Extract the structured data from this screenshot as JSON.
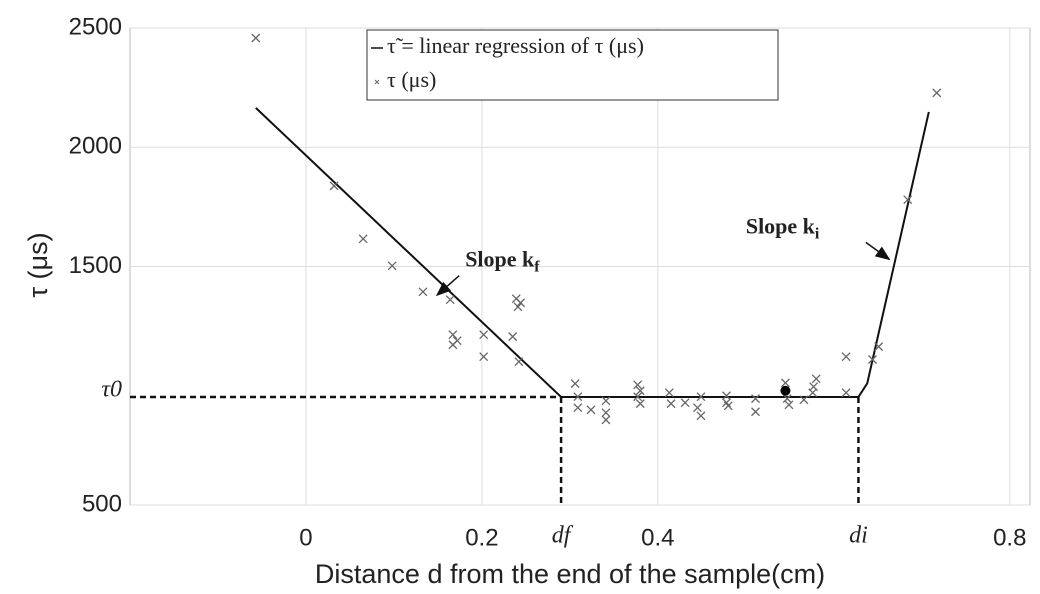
{
  "chart_data": {
    "type": "scatter",
    "xlabel": "Distance d from the end of the sample(cm)",
    "ylabel": "τ (μs)",
    "xlim": [
      -0.2,
      0.823
    ],
    "ylim": [
      500,
      2500
    ],
    "xticks": [
      0,
      0.2,
      0.4,
      0.8
    ],
    "yticks": [
      500,
      1500,
      2000,
      2500
    ],
    "grid": true,
    "legend": "top",
    "series": [
      {
        "name": "τ̃ = linear regression of τ (μs)",
        "kind": "line",
        "color": "#111111",
        "x": [
          -0.057,
          0.29,
          0.628,
          0.638,
          0.708
        ],
        "values": [
          2165,
          953,
          953,
          1010,
          2148
        ]
      },
      {
        "name": "τ (μs)",
        "kind": "points",
        "color": "#666666",
        "x": [
          -0.057,
          0.032,
          0.065,
          0.098,
          0.133,
          0.164,
          0.167,
          0.167,
          0.172,
          0.202,
          0.202,
          0.235,
          0.239,
          0.241,
          0.244,
          0.242,
          0.306,
          0.309,
          0.309,
          0.324,
          0.341,
          0.341,
          0.341,
          0.377,
          0.38,
          0.377,
          0.38,
          0.413,
          0.415,
          0.431,
          0.445,
          0.449,
          0.449,
          0.478,
          0.478,
          0.48,
          0.511,
          0.511,
          0.545,
          0.547,
          0.549,
          0.566,
          0.577,
          0.58,
          0.576,
          0.614,
          0.614,
          0.644,
          0.651,
          0.684,
          0.717
        ],
        "values": [
          2458,
          1838,
          1616,
          1503,
          1394,
          1361,
          1214,
          1172,
          1189,
          1214,
          1122,
          1206,
          1365,
          1331,
          1348,
          1101,
          1009,
          954,
          908,
          899,
          937,
          887,
          857,
          1004,
          979,
          954,
          925,
          971,
          925,
          929,
          908,
          954,
          874,
          958,
          929,
          916,
          946,
          891,
          1012,
          946,
          920,
          941,
          996,
          1029,
          971,
          1122,
          971,
          1110,
          1164,
          1780,
          2228
        ]
      }
    ],
    "highlight": {
      "x": 0.545,
      "value": 979,
      "color": "#000000"
    },
    "references": {
      "tau0": {
        "label": "τ0",
        "value": 953
      },
      "df": {
        "label": "df",
        "value": 0.29
      },
      "di": {
        "label": "di",
        "value": 0.628
      }
    },
    "annotations": [
      {
        "text": "Slope k",
        "subscript": "f",
        "x": 0.181,
        "y": 1520,
        "arrow_x": 0.149,
        "arrow_y": 1380
      },
      {
        "text": "Slope k",
        "subscript": "i",
        "x": 0.5,
        "y": 1660,
        "arrow_x": 0.663,
        "arrow_y": 1530
      }
    ]
  }
}
